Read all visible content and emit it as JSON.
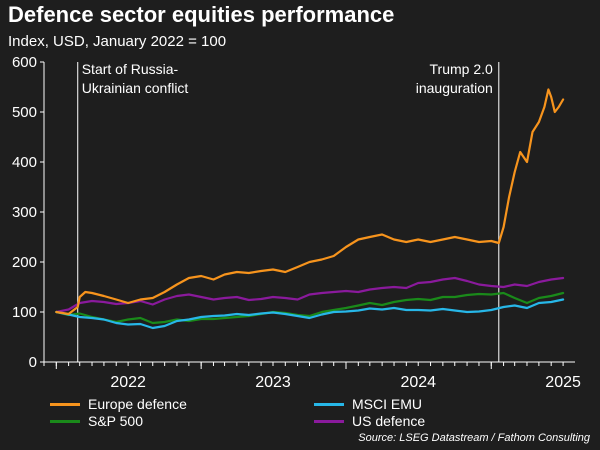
{
  "title": "Defence sector equities performance",
  "subtitle": "Index, USD, January 2022 = 100",
  "source": "Source: LSEG Datastream / Fathom Consulting",
  "colors": {
    "background": "#1e1e1e",
    "europe_defence": "#f7941d",
    "msci_emu": "#27b7e8",
    "sp500": "#1a8a1a",
    "us_defence": "#8a1a9c",
    "text": "#ffffff"
  },
  "chart_data": {
    "type": "line",
    "title": "Defence sector equities performance",
    "subtitle": "Index, USD, January 2022 = 100",
    "xlabel": "",
    "ylabel": "",
    "xlim": [
      "2021-12-01",
      "2025-07-31"
    ],
    "ylim": [
      0,
      600
    ],
    "y_ticks": [
      0,
      100,
      200,
      300,
      400,
      500,
      600
    ],
    "x_ticks": [
      "2022",
      "2023",
      "2024",
      "2025"
    ],
    "grid": false,
    "legend_placement": "bottom",
    "annotations": [
      {
        "date": "2022-02-24",
        "label_lines": [
          "Start of Russia-",
          "Ukrainian conflict"
        ],
        "align": "left"
      },
      {
        "date": "2025-01-20",
        "label_lines": [
          "Trump 2.0",
          "inauguration"
        ],
        "align": "right"
      }
    ],
    "series": [
      {
        "name": "Europe defence",
        "color": "#f7941d",
        "points": [
          [
            "2022-01-01",
            100
          ],
          [
            "2022-02-01",
            96
          ],
          [
            "2022-02-24",
            110
          ],
          [
            "2022-03-01",
            130
          ],
          [
            "2022-03-15",
            140
          ],
          [
            "2022-04-01",
            138
          ],
          [
            "2022-05-01",
            132
          ],
          [
            "2022-06-01",
            125
          ],
          [
            "2022-07-01",
            118
          ],
          [
            "2022-08-01",
            125
          ],
          [
            "2022-09-01",
            128
          ],
          [
            "2022-10-01",
            140
          ],
          [
            "2022-11-01",
            155
          ],
          [
            "2022-12-01",
            168
          ],
          [
            "2023-01-01",
            172
          ],
          [
            "2023-02-01",
            165
          ],
          [
            "2023-03-01",
            175
          ],
          [
            "2023-04-01",
            180
          ],
          [
            "2023-05-01",
            178
          ],
          [
            "2023-06-01",
            182
          ],
          [
            "2023-07-01",
            185
          ],
          [
            "2023-08-01",
            180
          ],
          [
            "2023-09-01",
            190
          ],
          [
            "2023-10-01",
            200
          ],
          [
            "2023-11-01",
            205
          ],
          [
            "2023-12-01",
            212
          ],
          [
            "2024-01-01",
            230
          ],
          [
            "2024-02-01",
            245
          ],
          [
            "2024-03-01",
            250
          ],
          [
            "2024-04-01",
            255
          ],
          [
            "2024-05-01",
            245
          ],
          [
            "2024-06-01",
            240
          ],
          [
            "2024-07-01",
            245
          ],
          [
            "2024-08-01",
            240
          ],
          [
            "2024-09-01",
            245
          ],
          [
            "2024-10-01",
            250
          ],
          [
            "2024-11-01",
            245
          ],
          [
            "2024-12-01",
            240
          ],
          [
            "2025-01-01",
            242
          ],
          [
            "2025-01-20",
            238
          ],
          [
            "2025-02-01",
            270
          ],
          [
            "2025-02-15",
            330
          ],
          [
            "2025-03-01",
            380
          ],
          [
            "2025-03-15",
            420
          ],
          [
            "2025-04-01",
            400
          ],
          [
            "2025-04-15",
            460
          ],
          [
            "2025-05-01",
            480
          ],
          [
            "2025-05-15",
            510
          ],
          [
            "2025-05-25",
            545
          ],
          [
            "2025-06-01",
            530
          ],
          [
            "2025-06-10",
            500
          ],
          [
            "2025-06-20",
            510
          ],
          [
            "2025-07-01",
            525
          ]
        ]
      },
      {
        "name": "MSCI EMU",
        "color": "#27b7e8",
        "points": [
          [
            "2022-01-01",
            100
          ],
          [
            "2022-02-01",
            95
          ],
          [
            "2022-03-01",
            90
          ],
          [
            "2022-04-01",
            88
          ],
          [
            "2022-05-01",
            85
          ],
          [
            "2022-06-01",
            78
          ],
          [
            "2022-07-01",
            75
          ],
          [
            "2022-08-01",
            76
          ],
          [
            "2022-09-01",
            68
          ],
          [
            "2022-10-01",
            72
          ],
          [
            "2022-11-01",
            82
          ],
          [
            "2022-12-01",
            85
          ],
          [
            "2023-01-01",
            90
          ],
          [
            "2023-02-01",
            92
          ],
          [
            "2023-03-01",
            93
          ],
          [
            "2023-04-01",
            96
          ],
          [
            "2023-05-01",
            94
          ],
          [
            "2023-06-01",
            97
          ],
          [
            "2023-07-01",
            99
          ],
          [
            "2023-08-01",
            96
          ],
          [
            "2023-09-01",
            92
          ],
          [
            "2023-10-01",
            88
          ],
          [
            "2023-11-01",
            95
          ],
          [
            "2023-12-01",
            100
          ],
          [
            "2024-01-01",
            101
          ],
          [
            "2024-02-01",
            103
          ],
          [
            "2024-03-01",
            107
          ],
          [
            "2024-04-01",
            105
          ],
          [
            "2024-05-01",
            108
          ],
          [
            "2024-06-01",
            104
          ],
          [
            "2024-07-01",
            104
          ],
          [
            "2024-08-01",
            103
          ],
          [
            "2024-09-01",
            106
          ],
          [
            "2024-10-01",
            103
          ],
          [
            "2024-11-01",
            100
          ],
          [
            "2024-12-01",
            101
          ],
          [
            "2025-01-01",
            104
          ],
          [
            "2025-02-01",
            110
          ],
          [
            "2025-03-01",
            113
          ],
          [
            "2025-04-01",
            108
          ],
          [
            "2025-05-01",
            118
          ],
          [
            "2025-06-01",
            120
          ],
          [
            "2025-07-01",
            125
          ]
        ]
      },
      {
        "name": "S&P 500",
        "color": "#1a8a1a",
        "points": [
          [
            "2022-01-01",
            100
          ],
          [
            "2022-02-01",
            94
          ],
          [
            "2022-03-01",
            97
          ],
          [
            "2022-04-01",
            90
          ],
          [
            "2022-05-01",
            85
          ],
          [
            "2022-06-01",
            80
          ],
          [
            "2022-07-01",
            85
          ],
          [
            "2022-08-01",
            88
          ],
          [
            "2022-09-01",
            78
          ],
          [
            "2022-10-01",
            80
          ],
          [
            "2022-11-01",
            85
          ],
          [
            "2022-12-01",
            82
          ],
          [
            "2023-01-01",
            86
          ],
          [
            "2023-02-01",
            86
          ],
          [
            "2023-03-01",
            88
          ],
          [
            "2023-04-01",
            90
          ],
          [
            "2023-05-01",
            92
          ],
          [
            "2023-06-01",
            96
          ],
          [
            "2023-07-01",
            100
          ],
          [
            "2023-08-01",
            98
          ],
          [
            "2023-09-01",
            94
          ],
          [
            "2023-10-01",
            92
          ],
          [
            "2023-11-01",
            100
          ],
          [
            "2023-12-01",
            104
          ],
          [
            "2024-01-01",
            108
          ],
          [
            "2024-02-01",
            113
          ],
          [
            "2024-03-01",
            118
          ],
          [
            "2024-04-01",
            114
          ],
          [
            "2024-05-01",
            120
          ],
          [
            "2024-06-01",
            124
          ],
          [
            "2024-07-01",
            126
          ],
          [
            "2024-08-01",
            124
          ],
          [
            "2024-09-01",
            130
          ],
          [
            "2024-10-01",
            130
          ],
          [
            "2024-11-01",
            134
          ],
          [
            "2024-12-01",
            136
          ],
          [
            "2025-01-01",
            135
          ],
          [
            "2025-02-01",
            138
          ],
          [
            "2025-03-01",
            128
          ],
          [
            "2025-04-01",
            118
          ],
          [
            "2025-05-01",
            128
          ],
          [
            "2025-06-01",
            132
          ],
          [
            "2025-07-01",
            138
          ]
        ]
      },
      {
        "name": "US defence",
        "color": "#8a1a9c",
        "points": [
          [
            "2022-01-01",
            100
          ],
          [
            "2022-02-01",
            105
          ],
          [
            "2022-03-01",
            118
          ],
          [
            "2022-04-01",
            122
          ],
          [
            "2022-05-01",
            120
          ],
          [
            "2022-06-01",
            116
          ],
          [
            "2022-07-01",
            118
          ],
          [
            "2022-08-01",
            122
          ],
          [
            "2022-09-01",
            115
          ],
          [
            "2022-10-01",
            125
          ],
          [
            "2022-11-01",
            132
          ],
          [
            "2022-12-01",
            135
          ],
          [
            "2023-01-01",
            130
          ],
          [
            "2023-02-01",
            125
          ],
          [
            "2023-03-01",
            128
          ],
          [
            "2023-04-01",
            130
          ],
          [
            "2023-05-01",
            124
          ],
          [
            "2023-06-01",
            126
          ],
          [
            "2023-07-01",
            130
          ],
          [
            "2023-08-01",
            128
          ],
          [
            "2023-09-01",
            125
          ],
          [
            "2023-10-01",
            135
          ],
          [
            "2023-11-01",
            138
          ],
          [
            "2023-12-01",
            140
          ],
          [
            "2024-01-01",
            142
          ],
          [
            "2024-02-01",
            140
          ],
          [
            "2024-03-01",
            145
          ],
          [
            "2024-04-01",
            148
          ],
          [
            "2024-05-01",
            150
          ],
          [
            "2024-06-01",
            148
          ],
          [
            "2024-07-01",
            158
          ],
          [
            "2024-08-01",
            160
          ],
          [
            "2024-09-01",
            165
          ],
          [
            "2024-10-01",
            168
          ],
          [
            "2024-11-01",
            162
          ],
          [
            "2024-12-01",
            155
          ],
          [
            "2025-01-01",
            152
          ],
          [
            "2025-02-01",
            150
          ],
          [
            "2025-03-01",
            155
          ],
          [
            "2025-04-01",
            152
          ],
          [
            "2025-05-01",
            160
          ],
          [
            "2025-06-01",
            165
          ],
          [
            "2025-07-01",
            168
          ]
        ]
      }
    ]
  }
}
